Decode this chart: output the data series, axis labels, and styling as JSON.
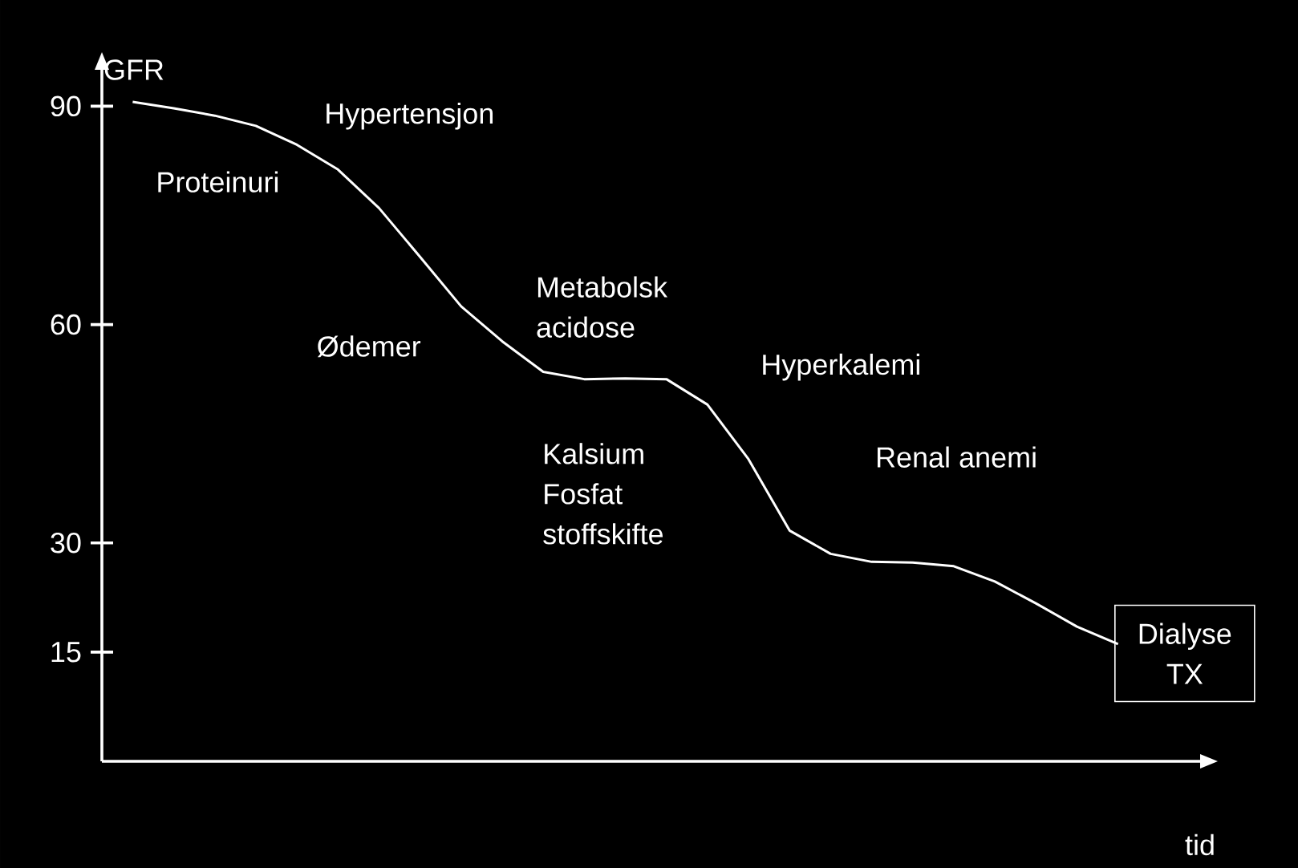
{
  "chart_data": {
    "type": "line",
    "xlabel": "tid",
    "ylabel": "GFR",
    "categories": [
      null,
      null,
      null,
      null,
      null,
      null,
      null,
      null,
      null,
      null,
      null,
      null,
      null,
      null,
      null,
      null,
      null,
      null,
      null,
      null,
      null,
      null,
      null,
      null,
      null
    ],
    "values": [
      90.6,
      89.7,
      88.7,
      87.3,
      84.7,
      81.3,
      76.0,
      69.3,
      62.5,
      57.7,
      53.5,
      52.5,
      52.6,
      52.5,
      49.0,
      41.5,
      31.7,
      28.5,
      27.4,
      27.3,
      26.8,
      24.7,
      21.7,
      18.5,
      16.1
    ],
    "color": "#ffffff",
    "marker": "none",
    "line_style": "solid",
    "ylim": [
      0,
      95
    ],
    "yticks": [
      15,
      30,
      60,
      90
    ],
    "annotations": [
      "Hypertensjon",
      "Proteinuri",
      "Metabolsk acidose",
      "Ødemer",
      "Hyperkalemi",
      "Kalsium Fosfat stoffskifte",
      "Renal anemi",
      "Dialyse TX"
    ]
  }
}
